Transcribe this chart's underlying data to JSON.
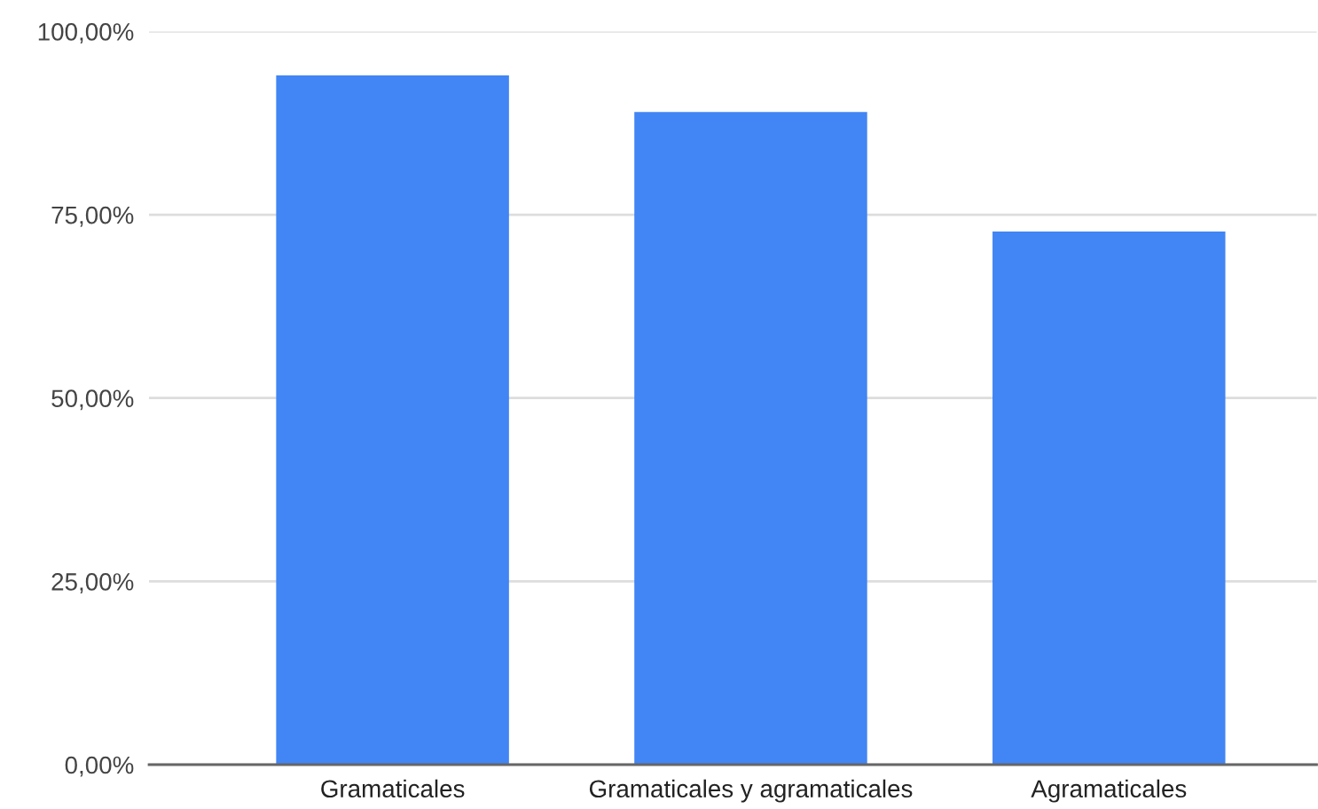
{
  "chart_data": {
    "type": "bar",
    "categories": [
      "Gramaticales",
      "Gramaticales y agramaticales",
      "Agramaticales"
    ],
    "values": [
      94,
      89,
      72.7
    ],
    "color": "#4285f4",
    "ylim": [
      0,
      100
    ],
    "yticks": [
      {
        "value": 0,
        "label": "0,00%"
      },
      {
        "value": 25,
        "label": "25,00%"
      },
      {
        "value": 50,
        "label": "50,00%"
      },
      {
        "value": 75,
        "label": "75,00%"
      },
      {
        "value": 100,
        "label": "100,00%"
      }
    ],
    "grid": "y",
    "legend": false
  }
}
